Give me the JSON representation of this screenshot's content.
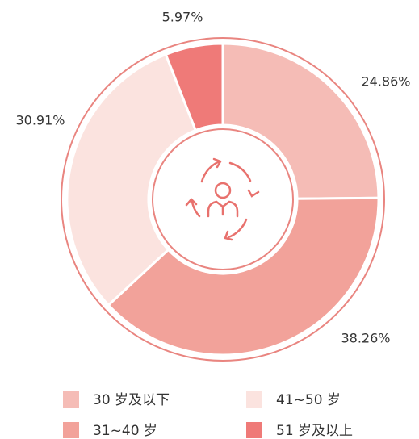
{
  "chart_data": {
    "type": "donut",
    "categories": [
      "30 岁及以下",
      "31~40 岁",
      "41~50 岁",
      "51 岁及以上"
    ],
    "values": [
      24.86,
      38.26,
      30.91,
      5.97
    ],
    "value_labels": [
      "24.86%",
      "38.26%",
      "30.91%",
      "5.97%"
    ],
    "colors": [
      "#f5bcb6",
      "#f2a29a",
      "#fbe3df",
      "#ef7a78"
    ]
  }
}
